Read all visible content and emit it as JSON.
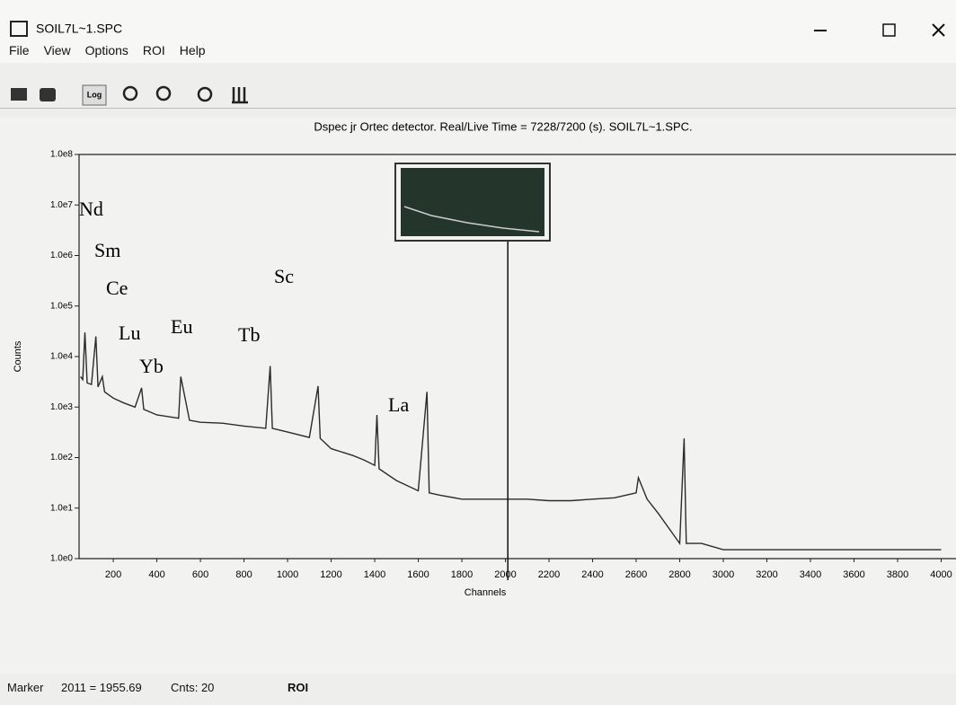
{
  "window": {
    "title": "SOIL7L~1.SPC"
  },
  "menu": [
    "File",
    "View",
    "Options",
    "ROI",
    "Help"
  ],
  "toolbar": {
    "log_button": "Log"
  },
  "chart_data": {
    "type": "line",
    "title": "Dspec jr Ortec detector. Real/Live Time = 7228/7200 (s). SOIL7L~1.SPC.",
    "x_label": "Channels",
    "y_label": "Counts",
    "log_scale": true,
    "grid": false,
    "color": "#2b2b2b",
    "marker_color": "#111111",
    "xlim": [
      43,
      4068
    ],
    "xticks": [
      200,
      400,
      600,
      800,
      1000,
      1200,
      1400,
      1600,
      1800,
      2000,
      2200,
      2400,
      2600,
      2800,
      3000,
      3200,
      3400,
      3600,
      3800,
      4000
    ],
    "ylim": [
      1,
      100000000
    ],
    "yticks": [
      {
        "value": 1,
        "label": "1.0e0"
      },
      {
        "value": 10,
        "label": "1.0e1"
      },
      {
        "value": 100,
        "label": "1.0e2"
      },
      {
        "value": 1000,
        "label": "1.0e3"
      },
      {
        "value": 10000,
        "label": "1.0e4"
      },
      {
        "value": 100000,
        "label": "1.0e5"
      },
      {
        "value": 1000000,
        "label": "1.0e6"
      },
      {
        "value": 10000000,
        "label": "1.0e7"
      },
      {
        "value": 100000000,
        "label": "1.0e8"
      }
    ],
    "x": [
      50,
      60,
      70,
      80,
      100,
      120,
      130,
      150,
      160,
      200,
      250,
      300,
      330,
      340,
      400,
      450,
      500,
      510,
      550,
      600,
      700,
      800,
      900,
      920,
      930,
      1000,
      1100,
      1140,
      1150,
      1200,
      1300,
      1350,
      1400,
      1410,
      1420,
      1500,
      1600,
      1640,
      1650,
      1700,
      1800,
      1900,
      2000,
      2100,
      2200,
      2300,
      2400,
      2500,
      2600,
      2610,
      2650,
      2700,
      2750,
      2800,
      2820,
      2830,
      2900,
      3000,
      3200,
      3400,
      3600,
      3800,
      4000
    ],
    "values": [
      4000,
      3500,
      30000,
      3000,
      2800,
      25000,
      2500,
      4000,
      2000,
      1500,
      1200,
      1000,
      2400,
      900,
      700,
      650,
      600,
      4000,
      550,
      500,
      480,
      420,
      380,
      6500,
      380,
      320,
      250,
      2600,
      240,
      150,
      110,
      90,
      70,
      700,
      60,
      35,
      22,
      2000,
      20,
      18,
      15,
      15,
      15,
      15,
      14,
      14,
      15,
      16,
      20,
      40,
      15,
      8,
      4,
      2,
      240,
      2,
      2,
      1.5,
      1.5,
      1.5,
      1.5,
      1.5,
      1.5
    ],
    "marker": 2011,
    "annotations": [
      "Nd",
      "Sm",
      "Ce",
      "Lu",
      "Eu",
      "Yb",
      "Tb",
      "Sc",
      "La"
    ]
  },
  "status": {
    "marker_label": "Marker",
    "marker_value": "2011 = 1955.69",
    "counts": "Cnts: 20",
    "roi": "ROI"
  }
}
